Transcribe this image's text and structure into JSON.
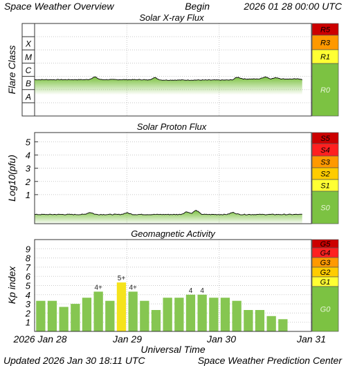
{
  "header": {
    "title": "Space Weather Overview",
    "begin_label": "Begin",
    "begin_time": "2026 01 28 00:00 UTC"
  },
  "footer": {
    "updated_label": "Updated",
    "updated_time": "2026 Jan 30 18:11 UTC",
    "credit": "Space Weather Prediction Center"
  },
  "colors": {
    "flux_green": "#7cc242",
    "scale_green": "#7cc242",
    "bar_green": "#86c651",
    "bar_yellow": "#f5e31c",
    "dark_red": "#cc0000",
    "red": "#ff2020",
    "orange": "#ff9900",
    "amber": "#ffcc00",
    "yellow": "#ffff33"
  },
  "chart_data": [
    {
      "type": "area",
      "title": "Solar X-ray Flux",
      "ylabel": "Flare Class",
      "flare_classes": [
        "A",
        "B",
        "C",
        "M",
        "X"
      ],
      "ylim": [
        -9,
        -2
      ],
      "y_units": "log10(W/m^2)",
      "x_range_days": [
        0,
        3
      ],
      "level_profile": {
        "baseline_log10": -6.25,
        "mean_shift_segments": [
          [
            0,
            1.2,
            -6.25
          ],
          [
            1.2,
            2.2,
            -6.28
          ],
          [
            2.2,
            2.9,
            -6.2
          ]
        ],
        "bumps": [
          [
            0.65,
            -6.05
          ],
          [
            1.3,
            -6.1
          ],
          [
            2.2,
            -6.07
          ],
          [
            2.5,
            -6.04
          ],
          [
            2.62,
            -6.1
          ]
        ]
      },
      "scale": [
        {
          "label": "R5",
          "color": "#cc0000"
        },
        {
          "label": "R3",
          "color": "#ff9900"
        },
        {
          "label": "R1",
          "color": "#ffff33"
        },
        {
          "label": "R0",
          "color": "#7cc242"
        }
      ]
    },
    {
      "type": "area",
      "title": "Solar Proton Flux",
      "ylabel": "Log10(pfu)",
      "yticks": [
        1,
        2,
        3,
        4,
        5
      ],
      "ylim": [
        -1.2,
        5.7
      ],
      "x_range_days": [
        0,
        3
      ],
      "level_profile": {
        "baseline_log10": -0.5,
        "bumps": [
          [
            0.6,
            -0.35
          ],
          [
            1.0,
            -0.38
          ],
          [
            1.65,
            -0.3
          ],
          [
            1.75,
            -0.2
          ],
          [
            2.15,
            -0.35
          ]
        ]
      },
      "scale": [
        {
          "label": "S5",
          "color": "#cc0000"
        },
        {
          "label": "S4",
          "color": "#ff2020"
        },
        {
          "label": "S3",
          "color": "#ff9900"
        },
        {
          "label": "S2",
          "color": "#ffcc00"
        },
        {
          "label": "S1",
          "color": "#ffff33"
        },
        {
          "label": "S0",
          "color": "#7cc242"
        }
      ]
    },
    {
      "type": "bar",
      "title": "Geomagnetic Activity",
      "ylabel": "Kp index",
      "xlabel": "Universal Time",
      "yticks": [
        1,
        2,
        3,
        4,
        5,
        6,
        7,
        8,
        9
      ],
      "ylim": [
        0,
        10
      ],
      "interval_hours": 3,
      "values": [
        3.33,
        3.33,
        2.67,
        3,
        3.67,
        4.33,
        3.33,
        5.33,
        4.33,
        3.33,
        2.33,
        3.67,
        3.67,
        4,
        4,
        3.67,
        3.67,
        3.33,
        2.33,
        2.33,
        1.67,
        1.33
      ],
      "labels": [
        "",
        "",
        "",
        "",
        "",
        "4+",
        "",
        "5+",
        "4+",
        "",
        "",
        "",
        "",
        "4",
        "4",
        "",
        "",
        "",
        "",
        "",
        "",
        ""
      ],
      "highlight_index": 7,
      "scale": [
        {
          "label": "G5",
          "color": "#cc0000"
        },
        {
          "label": "G4",
          "color": "#ff2020"
        },
        {
          "label": "G3",
          "color": "#ff9900"
        },
        {
          "label": "G2",
          "color": "#ffcc00"
        },
        {
          "label": "G1",
          "color": "#ffff33"
        },
        {
          "label": "G0",
          "color": "#7cc242"
        }
      ]
    }
  ],
  "time_axis": {
    "ticks": [
      "2026 Jan 28",
      "Jan 29",
      "Jan 30",
      "Jan 31"
    ],
    "days": 3
  }
}
